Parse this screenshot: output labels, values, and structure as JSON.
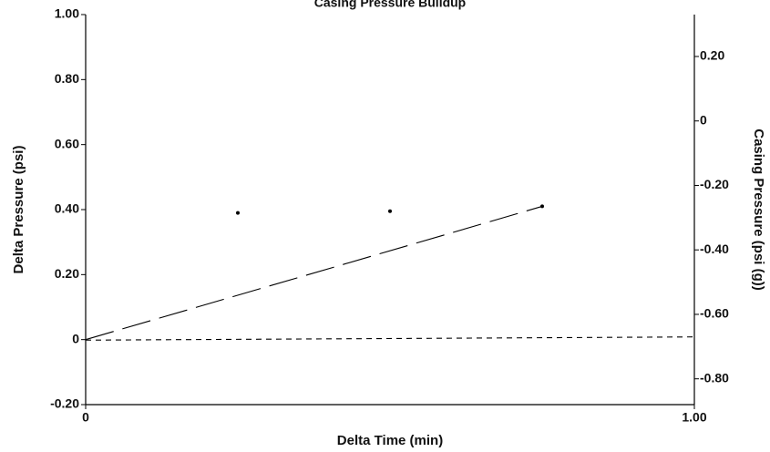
{
  "chart_data": {
    "type": "line",
    "title": "Casing Pressure Buildup",
    "xlabel": "Delta Time (min)",
    "ylabel": "Delta Pressure (psi)",
    "y2label": "Casing Pressure (psi (g))",
    "xlim": [
      0,
      1.0
    ],
    "ylim": [
      -0.2,
      1.0
    ],
    "y2lim": [
      -0.88,
      0.33
    ],
    "grid": false,
    "x_ticks": [
      "0",
      "1.00"
    ],
    "y_ticks": [
      {
        "value": 1.0,
        "label": "1.00"
      },
      {
        "value": 0.8,
        "label": "0.80"
      },
      {
        "value": 0.6,
        "label": "0.60"
      },
      {
        "value": 0.4,
        "label": "0.40"
      },
      {
        "value": 0.2,
        "label": "0.20"
      },
      {
        "value": 0.0,
        "label": "0"
      },
      {
        "value": -0.2,
        "label": "-0.20"
      }
    ],
    "y2_ticks": [
      {
        "value": 0.2,
        "label": "0.20"
      },
      {
        "value": 0.0,
        "label": "0"
      },
      {
        "value": -0.2,
        "label": "-0.20"
      },
      {
        "value": -0.4,
        "label": "-0.40"
      },
      {
        "value": -0.6,
        "label": "-0.60"
      },
      {
        "value": -0.8,
        "label": "-0.80"
      }
    ],
    "series": [
      {
        "axis": "y",
        "style": "points",
        "x": [
          0.25,
          0.5,
          0.75
        ],
        "y": [
          0.39,
          0.395,
          0.41
        ]
      },
      {
        "axis": "y",
        "style": "long-dash",
        "x": [
          0.0,
          0.75
        ],
        "y": [
          0.0,
          0.41
        ]
      },
      {
        "axis": "y2",
        "style": "short-dash",
        "x": [
          0.0,
          1.0
        ],
        "y": [
          -0.68,
          -0.67
        ]
      }
    ]
  }
}
